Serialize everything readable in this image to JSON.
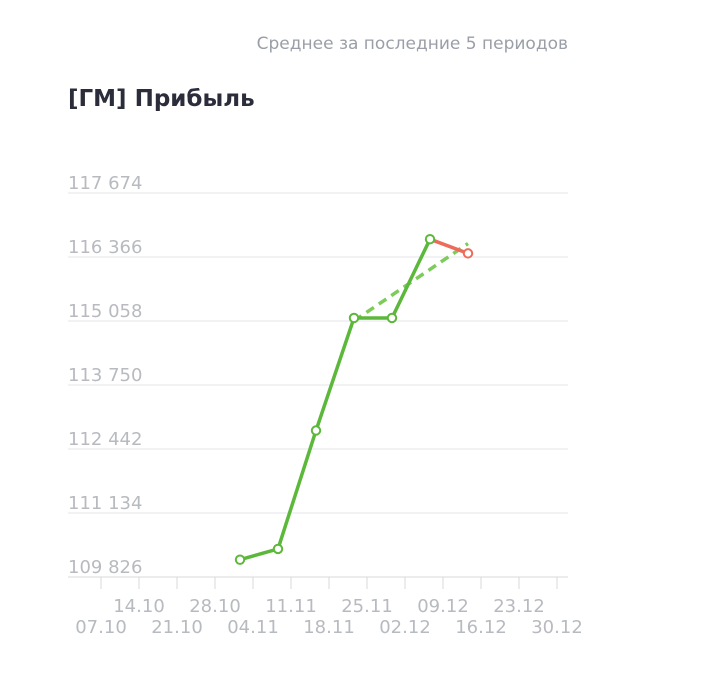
{
  "header": {
    "subtitle": "Среднее за последние 5 периодов",
    "title": "[ГМ] Прибыль"
  },
  "colors": {
    "line": "#5cb83a",
    "average_line": "#7dcb5b",
    "decline": "#ee6a5a",
    "grid": "#e4e6ea",
    "tick_text": "#b7babf"
  },
  "chart_data": {
    "type": "line",
    "title": "[ГМ] Прибыль",
    "subtitle": "Среднее за последние 5 периодов",
    "x_ticks": [
      "07.10",
      "14.10",
      "21.10",
      "28.10",
      "04.11",
      "11.11",
      "18.11",
      "25.11",
      "02.12",
      "09.12",
      "16.12",
      "23.12",
      "30.12"
    ],
    "y_ticks": [
      109826,
      111134,
      112442,
      113750,
      115058,
      116366,
      117674
    ],
    "y_tick_labels": [
      "109 826",
      "111 134",
      "112 442",
      "113 750",
      "115 058",
      "116 366",
      "117 674"
    ],
    "ylim": [
      109826,
      117674
    ],
    "grid": true,
    "series": [
      {
        "kind": "actual",
        "x": [
          "04.11",
          "11.11",
          "18.11",
          "25.11",
          "02.12",
          "09.12",
          "16.12"
        ],
        "values": [
          110180,
          110400,
          112820,
          115120,
          115120,
          116730,
          116440
        ]
      },
      {
        "kind": "average",
        "style": "dashed",
        "x": [
          "25.11",
          "16.12"
        ],
        "values": [
          115060,
          116640
        ]
      }
    ]
  }
}
